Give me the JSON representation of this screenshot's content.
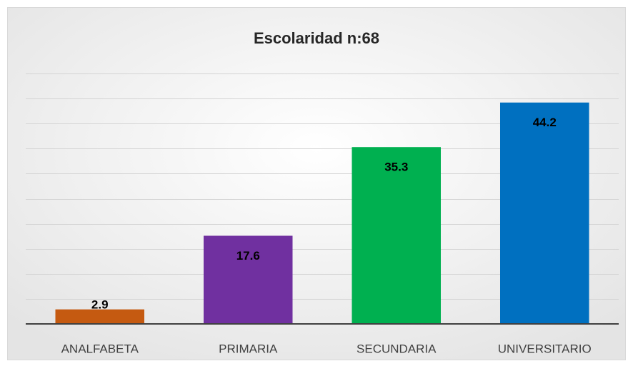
{
  "chart_data": {
    "type": "bar",
    "title": "Escolaridad n:68",
    "categories": [
      "ANALFABETA",
      "PRIMARIA",
      "SECUNDARIA",
      "UNIVERSITARIO"
    ],
    "values": [
      2.9,
      17.6,
      35.3,
      44.2
    ],
    "colors": [
      "#C55A11",
      "#7030A0",
      "#00B050",
      "#0070C0"
    ],
    "ylim": [
      0,
      50
    ],
    "yticks": [
      0,
      5,
      10,
      15,
      20,
      25,
      30,
      35,
      40,
      45,
      50
    ],
    "grid": true
  }
}
